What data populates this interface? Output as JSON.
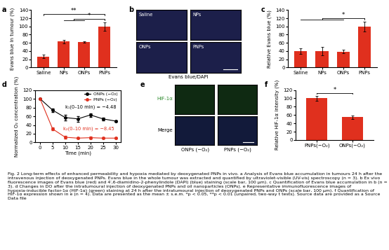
{
  "chart_data": [
    {
      "panel": "a",
      "type": "bar",
      "y_label": "Evans blue in tumour (%)",
      "categories": [
        "Saline",
        "NPs",
        "ONPs",
        "PNPs"
      ],
      "values": [
        27,
        63,
        62,
        100
      ],
      "errors": [
        4,
        5,
        2,
        10
      ],
      "color": "#e0301e",
      "ylim": [
        0,
        140
      ],
      "yticks": [
        0,
        20,
        40,
        60,
        80,
        100,
        120,
        140
      ],
      "significance": [
        {
          "from": [
            "NPs",
            "ONPs"
          ],
          "to": "PNPs",
          "label": "*"
        },
        {
          "from": [
            "Saline"
          ],
          "to": "PNPs",
          "label": "**"
        }
      ]
    },
    {
      "panel": "c",
      "type": "bar",
      "y_label": "Relative Evans blue (%)",
      "categories": [
        "Saline",
        "NPs",
        "ONPs",
        "PNPs"
      ],
      "values": [
        40,
        40,
        39,
        100
      ],
      "errors": [
        7,
        10,
        5,
        12
      ],
      "color": "#e0301e",
      "ylim": [
        0,
        140
      ],
      "yticks": [
        0,
        20,
        40,
        60,
        80,
        100,
        120,
        140
      ],
      "significance": [
        {
          "from": [
            "Saline",
            "NPs",
            "ONPs"
          ],
          "to": "PNPs",
          "label": "*"
        }
      ]
    },
    {
      "panel": "d",
      "type": "line",
      "x_label": "Time (min)",
      "y_label": "Normalized O₂ concentration (%)",
      "x": [
        0,
        5,
        10,
        15,
        20,
        25,
        30
      ],
      "xlim": [
        -2,
        32
      ],
      "xticks": [
        0,
        5,
        10,
        15,
        20,
        25,
        30
      ],
      "ylim": [
        0,
        120
      ],
      "yticks": [
        0,
        20,
        40,
        60,
        80,
        100,
        120
      ],
      "legend": "upper right",
      "series": [
        {
          "name": "ONPs (−O₂)",
          "color": "#000000",
          "marker": "o",
          "values": [
            100,
            74,
            57,
            54,
            63,
            54,
            49
          ],
          "errors": [
            0,
            4,
            6,
            6,
            4,
            3,
            2
          ],
          "annotation": "k₁(0–10 min) = −4.48"
        },
        {
          "name": "PNPs (−O₂)",
          "color": "#e0301e",
          "marker": "o",
          "values": [
            100,
            31,
            12,
            10,
            11,
            10,
            10
          ],
          "errors": [
            0,
            3,
            3,
            2,
            2,
            2,
            2
          ],
          "annotation": "k₂(0–10 min) = −8.45"
        }
      ]
    },
    {
      "panel": "f",
      "type": "bar",
      "y_label": "Relative HIF-1α intensity (%)",
      "categories": [
        "PNPs(−O₂)",
        "ONPs(−O₂)"
      ],
      "values": [
        100,
        55
      ],
      "errors": [
        6,
        4
      ],
      "color": "#e0301e",
      "ylim": [
        0,
        120
      ],
      "yticks": [
        0,
        20,
        40,
        60,
        80,
        100,
        120
      ],
      "significance": [
        {
          "from": [
            "PNPs(−O₂)"
          ],
          "to": "ONPs(−O₂)",
          "label": "*"
        }
      ]
    }
  ],
  "images": [
    {
      "panel": "b",
      "tiles": [
        "Saline",
        "NPs",
        "ONPs",
        "PNPs"
      ],
      "caption": "Evans blue/DAPI"
    },
    {
      "panel": "e",
      "rows": [
        "HIF-1α",
        "Merge"
      ],
      "columns": [
        "ONPs (−O₂)",
        "PNPs (−O₂)"
      ]
    }
  ],
  "caption": "Fig. 2 Long-term effects of enhanced permeability and hypoxia mediated by deoxygenated PNPs in vivo. a Analysis of Evans blue accumulation in tumours 24 h after the intravenous injection of deoxygenated PNPs. Evans blue in the whole tumour was extracted and quantified by ultraviolet-visible (UV-vis) spectroscopy (n = 3). b Ex vivo fluorescence images of Evans blue (red) and 4′,6-diamidino-2-phenylindole (DAPI) (blue) staining (scale bar, 100 μm). c Quantification of Evans blue accumulation in b (n = 3). d Changes in DO after the intratumoural injection of deoxygenated PNPs and oil nanoparticles (ONPs). e Representative immunofluorescence images of hypoxia-inducible factor-1α (HIF-1α) (green) staining at 24 h after the intratumoural injection of deoxygenated PNPs and ONPs (scale bar, 100 μm). f Quantification of HIF-1α expression shown in e (n = 4). Data are presented as the mean ± s.e.m. *p < 0.05, **p < 0.01 (unpaired, two-way t tests). Source data are provided as a Source Data file"
}
